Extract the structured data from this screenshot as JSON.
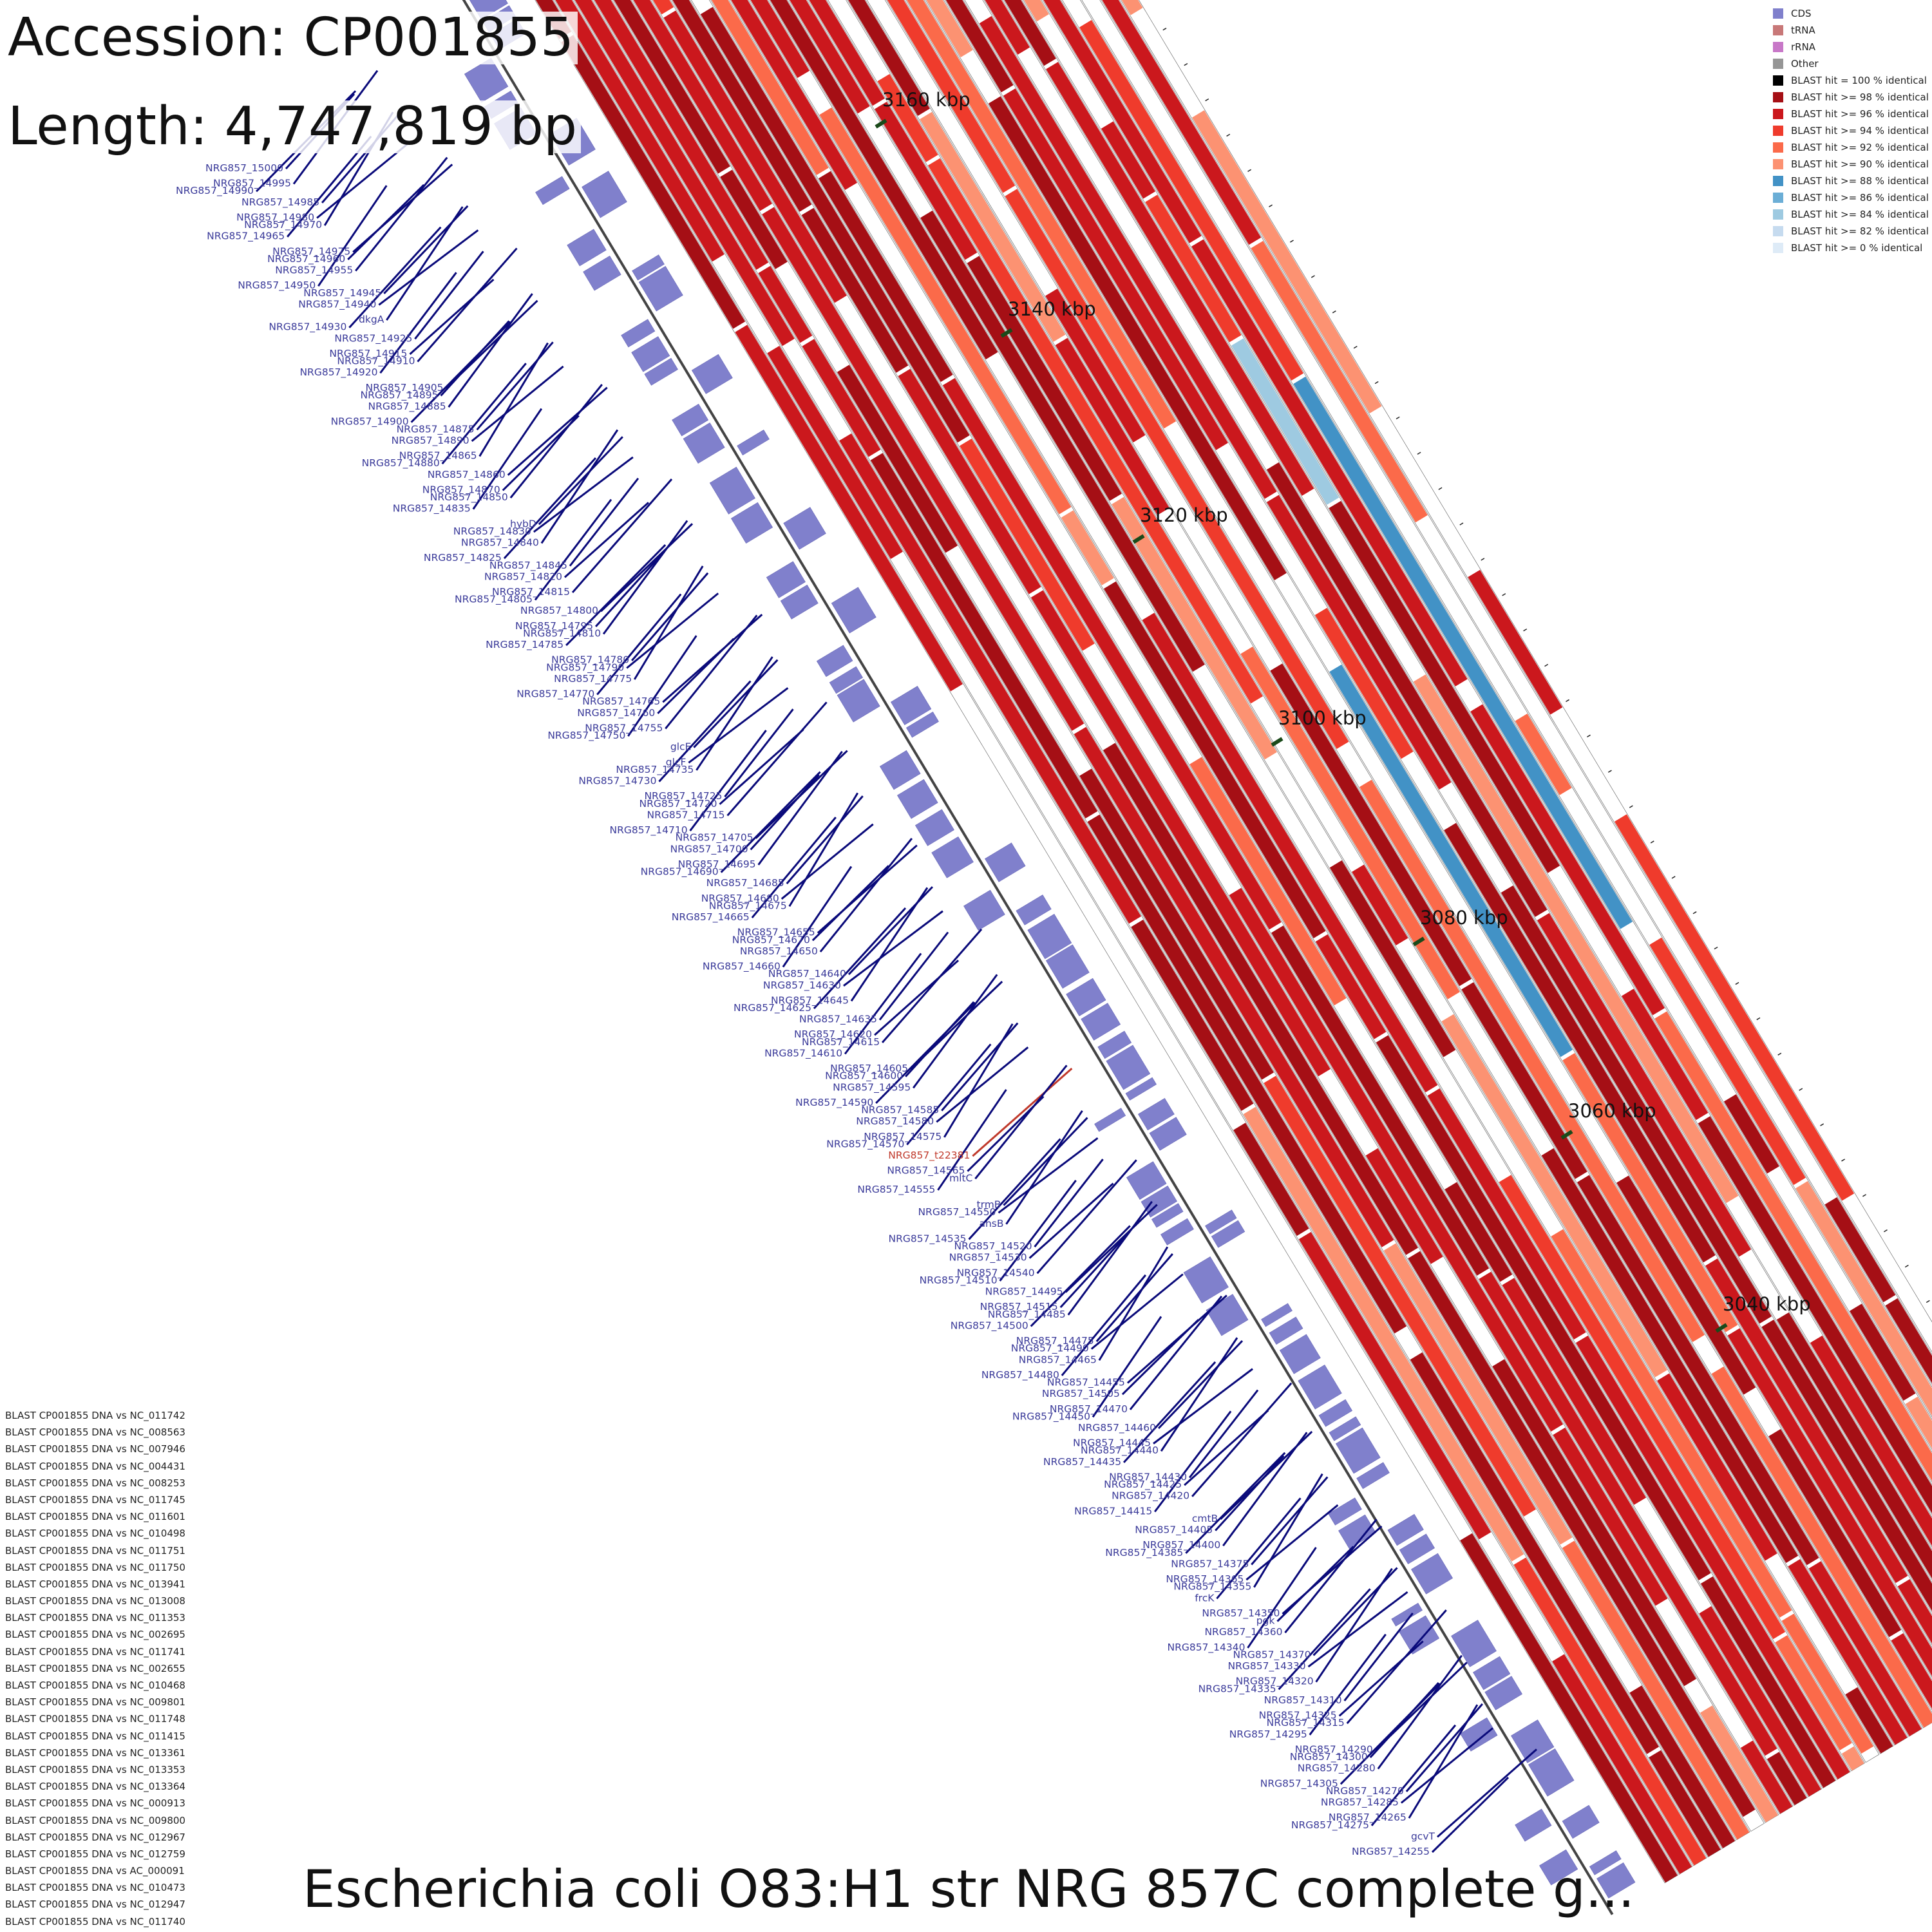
{
  "header": {
    "accession": "Accession: CP001855",
    "length": "Length: 4,747,819 bp",
    "title": "Escherichia coli O83:H1 str NRG 857C complete g..."
  },
  "legend": [
    {
      "label": "CDS",
      "color": "#8080cc"
    },
    {
      "label": "tRNA",
      "color": "#c87878"
    },
    {
      "label": "rRNA",
      "color": "#c878c8"
    },
    {
      "label": "Other",
      "color": "#969696"
    },
    {
      "label": "BLAST hit = 100 % identical",
      "color": "#000000"
    },
    {
      "label": "BLAST hit >= 98 % identical",
      "color": "#a50f15"
    },
    {
      "label": "BLAST hit >= 96 % identical",
      "color": "#cb181d"
    },
    {
      "label": "BLAST hit >= 94 % identical",
      "color": "#ef3b2c"
    },
    {
      "label": "BLAST hit >= 92 % identical",
      "color": "#fb6a4a"
    },
    {
      "label": "BLAST hit >= 90 % identical",
      "color": "#fc9272"
    },
    {
      "label": "BLAST hit >= 88 % identical",
      "color": "#4292c6"
    },
    {
      "label": "BLAST hit >= 86 % identical",
      "color": "#6baed6"
    },
    {
      "label": "BLAST hit >= 84 % identical",
      "color": "#9ecae1"
    },
    {
      "label": "BLAST hit >= 82 % identical",
      "color": "#c6dbef"
    },
    {
      "label": "BLAST hit >= 0 % identical",
      "color": "#deebf7"
    }
  ],
  "tracks": [
    "BLAST CP001855 DNA vs NC_011742",
    "BLAST CP001855 DNA vs NC_008563",
    "BLAST CP001855 DNA vs NC_007946",
    "BLAST CP001855 DNA vs NC_004431",
    "BLAST CP001855 DNA vs NC_008253",
    "BLAST CP001855 DNA vs NC_011745",
    "BLAST CP001855 DNA vs NC_011601",
    "BLAST CP001855 DNA vs NC_010498",
    "BLAST CP001855 DNA vs NC_011751",
    "BLAST CP001855 DNA vs NC_011750",
    "BLAST CP001855 DNA vs NC_013941",
    "BLAST CP001855 DNA vs NC_013008",
    "BLAST CP001855 DNA vs NC_011353",
    "BLAST CP001855 DNA vs NC_002695",
    "BLAST CP001855 DNA vs NC_011741",
    "BLAST CP001855 DNA vs NC_002655",
    "BLAST CP001855 DNA vs NC_010468",
    "BLAST CP001855 DNA vs NC_009801",
    "BLAST CP001855 DNA vs NC_011748",
    "BLAST CP001855 DNA vs NC_011415",
    "BLAST CP001855 DNA vs NC_013361",
    "BLAST CP001855 DNA vs NC_013353",
    "BLAST CP001855 DNA vs NC_013364",
    "BLAST CP001855 DNA vs NC_000913",
    "BLAST CP001855 DNA vs NC_009800",
    "BLAST CP001855 DNA vs NC_012967",
    "BLAST CP001855 DNA vs NC_012759",
    "BLAST CP001855 DNA vs AC_000091",
    "BLAST CP001855 DNA vs NC_010473",
    "BLAST CP001855 DNA vs NC_012947",
    "BLAST CP001855 DNA vs NC_011740"
  ],
  "scale_labels": [
    "3160 kbp",
    "3140 kbp",
    "3120 kbp",
    "3100 kbp",
    "3080 kbp",
    "3060 kbp",
    "3040 kbp"
  ],
  "gene_labels": [
    "NRG857_15000",
    "NRG857_14995",
    "NRG857_14990",
    "NRG857_14985",
    "NRG857_14980",
    "NRG857_14970",
    "NRG857_14965",
    "NRG857_14975",
    "NRG857_14960",
    "NRG857_14955",
    "NRG857_14950",
    "NRG857_14945",
    "NRG857_14940",
    "dkgA",
    "NRG857_14930",
    "NRG857_14925",
    "NRG857_14915",
    "NRG857_14910",
    "NRG857_14920",
    "NRG857_14905",
    "NRG857_14895",
    "NRG857_14885",
    "NRG857_14900",
    "NRG857_14875",
    "NRG857_14890",
    "NRG857_14865",
    "NRG857_14880",
    "NRG857_14860",
    "NRG857_14870",
    "NRG857_14850",
    "NRG857_14835",
    "hybD",
    "NRG857_14830",
    "NRG857_14840",
    "NRG857_14825",
    "NRG857_14845",
    "NRG857_14820",
    "NRG857_14815",
    "NRG857_14805",
    "NRG857_14800",
    "NRG857_14795",
    "NRG857_14810",
    "NRG857_14785",
    "NRG857_14780",
    "NRG857_14790",
    "NRG857_14775",
    "NRG857_14770",
    "NRG857_14765",
    "NRG857_14760",
    "NRG857_14755",
    "NRG857_14750",
    "glcE",
    "glcF",
    "NRG857_14735",
    "NRG857_14730",
    "NRG857_14725",
    "NRG857_14720",
    "NRG857_14715",
    "NRG857_14710",
    "NRG857_14705",
    "NRG857_14700",
    "NRG857_14695",
    "NRG857_14690",
    "NRG857_14685",
    "NRG857_14680",
    "NRG857_14675",
    "NRG857_14665",
    "NRG857_14655",
    "NRG857_14670",
    "NRG857_14650",
    "NRG857_14660",
    "NRG857_14640",
    "NRG857_14630",
    "NRG857_14645",
    "NRG857_14625",
    "NRG857_14635",
    "NRG857_14620",
    "NRG857_14615",
    "NRG857_14610",
    "NRG857_14605",
    "NRG857_14600",
    "NRG857_14595",
    "NRG857_14590",
    "NRG857_14585",
    "NRG857_14580",
    "NRG857_14575",
    "NRG857_14570",
    "NRG857_t22381",
    "NRG857_14565",
    "mltC",
    "NRG857_14555",
    "trmB",
    "NRG857_14550",
    "ansB",
    "NRG857_14535",
    "NRG857_14520",
    "NRG857_14530",
    "NRG857_14540",
    "NRG857_14510",
    "NRG857_14495",
    "NRG857_14515",
    "NRG857_14485",
    "NRG857_14500",
    "NRG857_14475",
    "NRG857_14490",
    "NRG857_14465",
    "NRG857_14480",
    "NRG857_14455",
    "NRG857_14505",
    "NRG857_14470",
    "NRG857_14450",
    "NRG857_14460",
    "NRG857_14445",
    "NRG857_14440",
    "NRG857_14435",
    "NRG857_14430",
    "NRG857_14425",
    "NRG857_14420",
    "NRG857_14415",
    "cmtB",
    "NRG857_14405",
    "NRG857_14400",
    "NRG857_14385",
    "NRG857_14375",
    "NRG857_14365",
    "NRG857_14355",
    "frcK",
    "NRG857_14350",
    "pgk",
    "NRG857_14360",
    "NRG857_14340",
    "NRG857_14370",
    "NRG857_14330",
    "NRG857_14320",
    "NRG857_14335",
    "NRG857_14310",
    "NRG857_14325",
    "NRG857_14315",
    "NRG857_14295",
    "NRG857_14290",
    "NRG857_14300",
    "NRG857_14280",
    "NRG857_14305",
    "NRG857_14270",
    "NRG857_14285",
    "NRG857_14265",
    "NRG857_14275",
    "gcvT",
    "NRG857_14255"
  ],
  "colors": {
    "label_blue": "#3b3b9a",
    "label_red": "#c0392b",
    "leader_line": "#0a0a7a",
    "axis_tick": "#1a4a1a"
  }
}
